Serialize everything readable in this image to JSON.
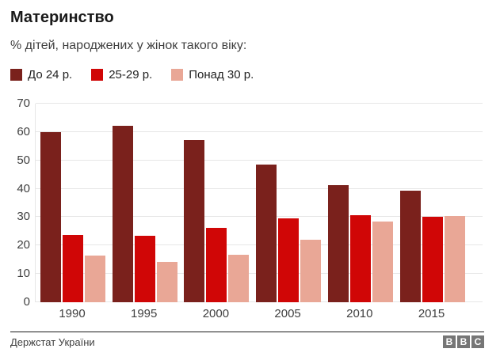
{
  "header": {
    "title": "Материнство",
    "subtitle": "% дітей, народжених у жінок такого віку:"
  },
  "chart_data": {
    "type": "bar",
    "title": "Материнство",
    "subtitle": "% дітей, народжених у жінок такого віку:",
    "categories": [
      "1990",
      "1995",
      "2000",
      "2005",
      "2010",
      "2015"
    ],
    "series": [
      {
        "name": "До 24 р.",
        "color": "#7a211c",
        "values": [
          59.9,
          62.3,
          57.2,
          48.4,
          41.4,
          39.4
        ]
      },
      {
        "name": "25-29 р.",
        "color": "#d00606",
        "values": [
          23.8,
          23.5,
          26.1,
          29.6,
          30.7,
          30.2
        ]
      },
      {
        "name": "Понад 30 р.",
        "color": "#e9a796",
        "values": [
          16.4,
          14.2,
          16.8,
          22.0,
          28.4,
          30.4
        ]
      }
    ],
    "xlabel": "",
    "ylabel": "",
    "ylim": [
      0,
      70
    ],
    "yticks": [
      0,
      10,
      20,
      30,
      40,
      50,
      60,
      70
    ],
    "grid": true,
    "legend_position": "top",
    "colors": {
      "gridline": "#e6e6e6",
      "axis_text": "#404040",
      "legend_text": "#222222"
    }
  },
  "footer": {
    "source": "Держстат України",
    "logo_letters": [
      "B",
      "B",
      "C"
    ],
    "logo_block_color": "#767676"
  }
}
